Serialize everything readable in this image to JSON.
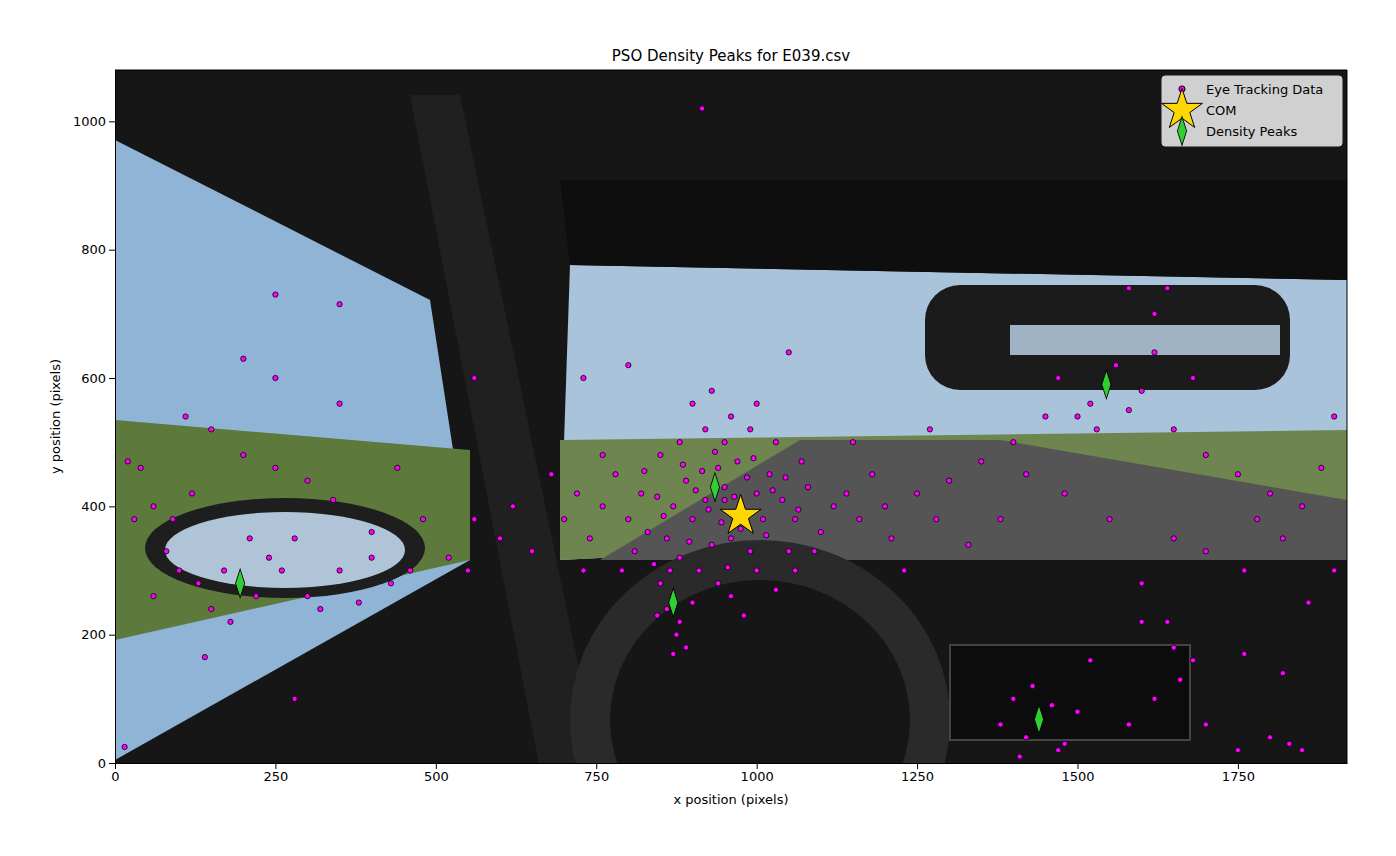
{
  "chart_data": {
    "type": "scatter",
    "title": "PSO Density Peaks for E039.csv",
    "x_label": "x position (pixels)",
    "y_label": "y position (pixels)",
    "xlim": [
      0,
      1920
    ],
    "ylim": [
      0,
      1080
    ],
    "xticks": [
      0,
      250,
      500,
      750,
      1000,
      1250,
      1500,
      1750
    ],
    "yticks": [
      0,
      200,
      400,
      600,
      800,
      1000
    ],
    "grid": false,
    "legend": "upper right",
    "series": [
      {
        "name": "Eye Tracking Data",
        "color": "#ff00ff",
        "marker": "circle",
        "x": [
          950,
          920,
          980,
          1000,
          900,
          960,
          940,
          870,
          1010,
          930,
          890,
          970,
          1040,
          860,
          990,
          910,
          950,
          1020,
          880,
          940,
          870,
          860,
          880,
          850,
          875,
          890,
          865,
          845,
          900,
          870,
          820,
          800,
          780,
          760,
          830,
          1060,
          1080,
          1100,
          1120,
          1050,
          990,
          960,
          920,
          1000,
          880,
          850,
          1030,
          1070,
          930,
          900,
          810,
          790,
          840,
          1000,
          1030,
          1060,
          960,
          980,
          1090,
          1140,
          1160,
          1180,
          1200,
          1150,
          1210,
          740,
          720,
          700,
          760,
          730,
          950,
          925,
          965,
          985,
          905,
          945,
          915,
          975,
          935,
          955,
          895,
          1015,
          1025,
          885,
          995,
          845,
          1045,
          825,
          1065,
          855,
          650,
          680,
          620,
          600,
          560,
          1250,
          1280,
          1300,
          1230,
          1270,
          1545,
          1520,
          1560,
          1500,
          1580,
          1530,
          1470,
          1600,
          1620,
          1450,
          1400,
          1350,
          1650,
          1700,
          1750,
          1800,
          1850,
          1880,
          1900,
          1820,
          1760,
          1700,
          1650,
          1600,
          1550,
          1480,
          1420,
          1380,
          1330,
          1900,
          1680,
          1620,
          1580,
          1780,
          1860,
          1440,
          1420,
          1460,
          1400,
          1480,
          1500,
          1430,
          1380,
          1470,
          1410,
          1650,
          1660,
          1640,
          1680,
          1620,
          1700,
          1750,
          1800,
          1830,
          1850,
          1580,
          1520,
          1600,
          1760,
          1820,
          195,
          170,
          220,
          150,
          240,
          130,
          210,
          260,
          180,
          300,
          100,
          80,
          60,
          40,
          20,
          120,
          90,
          280,
          320,
          350,
          380,
          400,
          430,
          460,
          340,
          300,
          250,
          200,
          150,
          110,
          350,
          250,
          250,
          350,
          280,
          140,
          15,
          200,
          60,
          400,
          480,
          520,
          550,
          440,
          30,
          915,
          560,
          800,
          1640,
          1050,
          730
        ],
        "values": [
          430,
          410,
          390,
          420,
          380,
          350,
          460,
          400,
          380,
          340,
          440,
          470,
          410,
          350,
          330,
          300,
          500,
          450,
          320,
          280,
          260,
          240,
          220,
          280,
          200,
          180,
          300,
          230,
          250,
          170,
          420,
          380,
          450,
          400,
          360,
          380,
          430,
          360,
          400,
          330,
          520,
          540,
          520,
          560,
          500,
          480,
          500,
          470,
          580,
          560,
          330,
          300,
          310,
          300,
          270,
          300,
          260,
          230,
          330,
          420,
          380,
          450,
          400,
          500,
          350,
          350,
          420,
          380,
          480,
          300,
          410,
          395,
          415,
          445,
          425,
          375,
          455,
          365,
          485,
          305,
          345,
          355,
          425,
          465,
          475,
          415,
          445,
          455,
          395,
          385,
          330,
          450,
          400,
          350,
          380,
          420,
          380,
          440,
          300,
          520,
          590,
          560,
          620,
          540,
          550,
          520,
          600,
          580,
          640,
          540,
          500,
          470,
          520,
          480,
          450,
          420,
          400,
          460,
          300,
          350,
          300,
          330,
          350,
          280,
          380,
          420,
          450,
          380,
          340,
          540,
          600,
          700,
          740,
          380,
          250,
          68,
          40,
          90,
          100,
          30,
          80,
          120,
          60,
          20,
          10,
          180,
          130,
          220,
          160,
          100,
          60,
          20,
          40,
          30,
          20,
          60,
          160,
          220,
          170,
          140,
          280,
          300,
          260,
          240,
          320,
          280,
          350,
          300,
          220,
          260,
          300,
          330,
          400,
          460,
          470,
          420,
          380,
          350,
          240,
          300,
          250,
          320,
          280,
          300,
          410,
          440,
          460,
          480,
          520,
          540,
          560,
          600,
          730,
          715,
          100,
          165,
          25,
          630,
          260,
          360,
          380,
          320,
          300,
          460,
          380,
          1020,
          600,
          620,
          740,
          640,
          600
        ]
      },
      {
        "name": "COM",
        "color": "#ffd700",
        "marker": "star",
        "x": [
          975
        ],
        "values": [
          385
        ]
      },
      {
        "name": "Density Peaks",
        "color": "#32cd32",
        "marker": "diamond",
        "x": [
          935,
          870,
          195,
          1545,
          1440
        ],
        "values": [
          430,
          250,
          280,
          590,
          68
        ]
      }
    ]
  }
}
